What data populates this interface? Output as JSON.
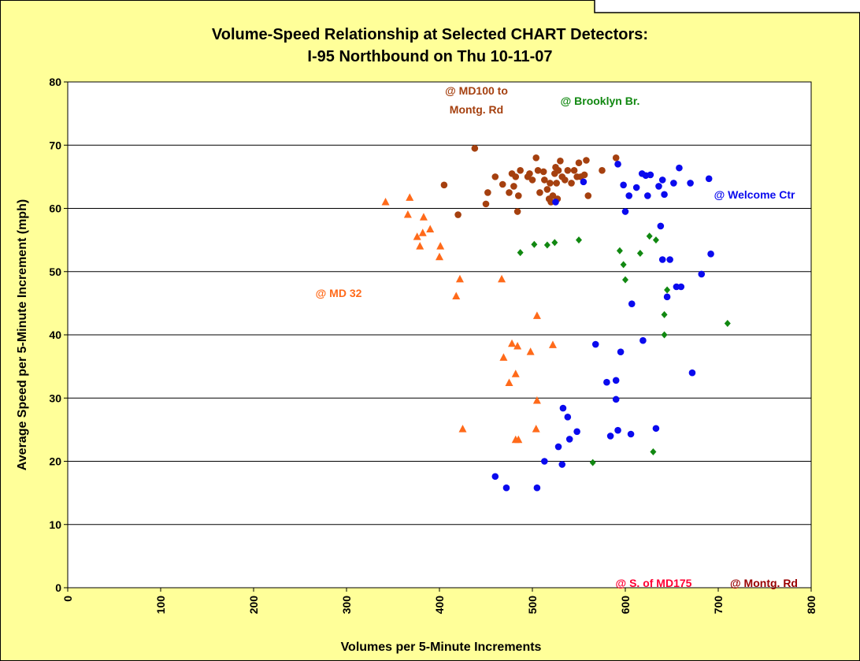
{
  "chart_data": {
    "type": "scatter",
    "title": "Volume-Speed Relationship at Selected CHART Detectors:\nI-95 Northbound on Thu 10-11-07",
    "x_label": "Volumes per 5-Minute Increments",
    "y_label": "Average Speed per 5-Minute Increment (mph)",
    "xlim": [
      0,
      800
    ],
    "ylim": [
      0,
      80
    ],
    "xticks": [
      0,
      100,
      200,
      300,
      400,
      500,
      600,
      700,
      800
    ],
    "yticks": [
      0,
      10,
      20,
      30,
      40,
      50,
      60,
      70,
      80
    ],
    "grid": true,
    "series": [
      {
        "name": "@ MD 32",
        "color": "#ff6a1a",
        "marker": "triangle",
        "x": [
          342,
          368,
          366,
          383,
          390,
          382,
          376,
          379,
          401,
          400,
          422,
          467,
          418,
          505,
          478,
          484,
          522,
          498,
          469,
          482,
          475,
          505,
          425,
          504,
          482,
          485
        ],
        "values": [
          61,
          61.7,
          59,
          58.6,
          56.7,
          56.1,
          55.5,
          54,
          54,
          52.3,
          48.8,
          48.8,
          46.1,
          43,
          38.6,
          38.2,
          38.4,
          37.3,
          36.4,
          33.8,
          32.4,
          29.6,
          25.1,
          25.1,
          23.4,
          23.4
        ]
      },
      {
        "name": "@ MD100 to\nMontg. Rd",
        "color": "#a5400f",
        "marker": "circle",
        "x": [
          405,
          420,
          438,
          450,
          452,
          460,
          468,
          475,
          478,
          480,
          482,
          484,
          485,
          487,
          495,
          497,
          500,
          504,
          506,
          508,
          512,
          513,
          516,
          518,
          519,
          520,
          522,
          524,
          525,
          526,
          527,
          528,
          530,
          532,
          535,
          538,
          542,
          545,
          548,
          550,
          552,
          556,
          558,
          560,
          575,
          590
        ],
        "values": [
          63.7,
          59,
          69.5,
          60.7,
          62.5,
          65,
          63.8,
          62.5,
          65.5,
          63.5,
          65,
          59.5,
          62,
          66,
          65,
          65.5,
          64.5,
          68,
          66,
          62.5,
          65.8,
          64.5,
          63,
          61.5,
          64,
          61,
          62,
          65.5,
          66.5,
          64,
          61.5,
          66,
          67.5,
          65,
          64.5,
          66,
          64,
          66,
          65,
          67.2,
          65,
          65.3,
          67.6,
          62,
          66,
          68
        ]
      },
      {
        "name": "@ Brooklyn Br.",
        "color": "#118811",
        "marker": "diamond",
        "x": [
          487,
          502,
          516,
          524,
          550,
          565,
          594,
          598,
          600,
          616,
          626,
          630,
          633,
          642,
          642,
          645,
          710
        ],
        "values": [
          53,
          54.3,
          54.2,
          54.6,
          55,
          19.8,
          53.3,
          51.1,
          48.7,
          52.9,
          55.6,
          21.5,
          55,
          40,
          43.2,
          47.1,
          41.8
        ]
      },
      {
        "name": "@ Welcome Ctr",
        "color": "#0a0aee",
        "marker": "circle",
        "x": [
          460,
          472,
          505,
          513,
          528,
          532,
          533,
          538,
          540,
          548,
          568,
          580,
          584,
          590,
          590,
          592,
          595,
          606,
          607,
          619,
          633,
          638,
          640,
          648,
          645,
          655,
          660,
          672,
          682,
          692,
          555,
          525,
          592,
          598,
          600,
          604,
          612,
          618,
          622,
          624,
          627,
          636,
          640,
          642,
          652,
          658,
          670,
          690
        ],
        "values": [
          17.6,
          15.8,
          15.8,
          20,
          22.3,
          19.5,
          28.4,
          27,
          23.5,
          24.7,
          38.5,
          32.5,
          24,
          29.8,
          32.8,
          24.9,
          37.3,
          24.3,
          44.9,
          39.1,
          25.2,
          57.2,
          51.9,
          51.9,
          46,
          47.6,
          47.6,
          34,
          49.6,
          52.8,
          64.2,
          61,
          67,
          63.7,
          59.5,
          62,
          63.3,
          65.5,
          65.2,
          62,
          65.3,
          63.5,
          64.5,
          62.2,
          64,
          66.4,
          64,
          64.7
        ]
      }
    ],
    "annotations": [
      {
        "text": "@ S. of MD175",
        "color": "#ff0033"
      },
      {
        "text": "@ Montg. Rd",
        "color": "#990000"
      }
    ]
  }
}
